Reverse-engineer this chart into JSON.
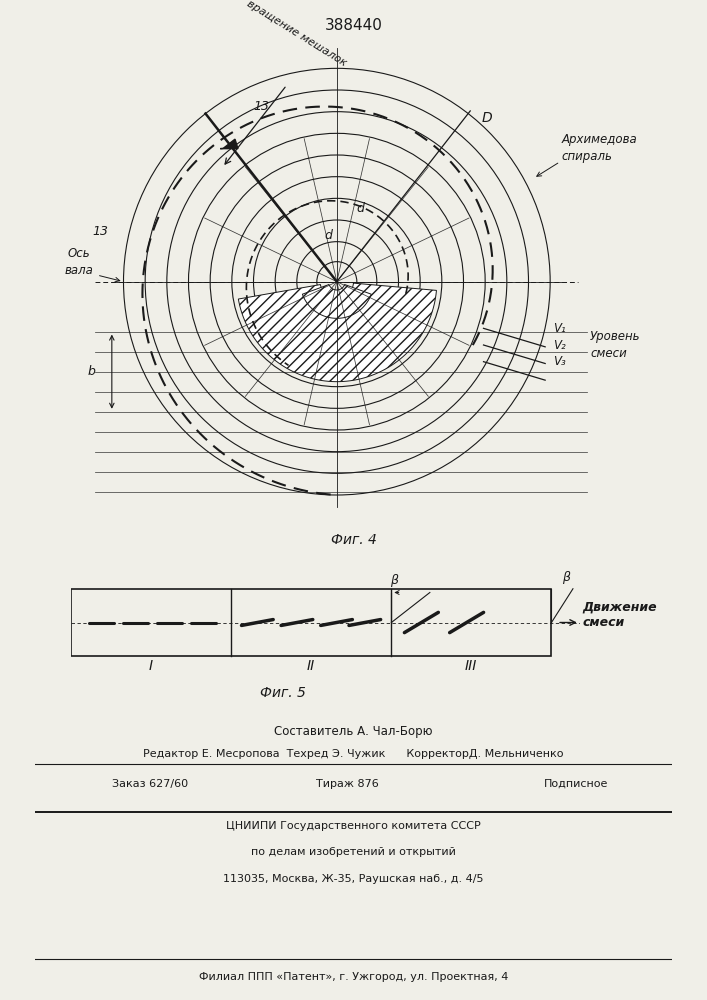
{
  "title": "388440",
  "fig4_label": "Фиг. 4",
  "fig5_label": "Фиг. 5",
  "label_rotation": "вращение мешалок",
  "label_spiral": "Архимедова\nспираль",
  "label_axis": "Ось\nвала",
  "label_level": "Уровень\nсмеси",
  "label_movement": "Движение\nсмеси",
  "label_d_big": "D",
  "label_d_small": "d",
  "label_13": "13",
  "label_b": "b",
  "label_v1": "V₁",
  "label_v2": "V₂",
  "label_v3": "V₃",
  "label_I": "I",
  "label_II": "II",
  "label_III": "III",
  "label_beta": "β",
  "bg_color": "#f0efe8",
  "line_color": "#1a1a1a",
  "text_line1": "Составитель А. Чал-Борю",
  "text_line2": "Редактор Е. Месропова  Техред Э. Чужик      КорректорД. Мельниченко",
  "text_line3a": "Заказ 627/60",
  "text_line3b": "Тираж 876",
  "text_line3c": "Подписное",
  "text_line4": "ЦНИИПИ Государственного комитета СССР",
  "text_line5": "по делам изобретений и открытий",
  "text_line6": "113035, Москва, Ж-35, Раушская наб., д. 4/5",
  "text_line7": "Филиал ППП «Патент», г. Ужгород, ул. Проектная, 4"
}
